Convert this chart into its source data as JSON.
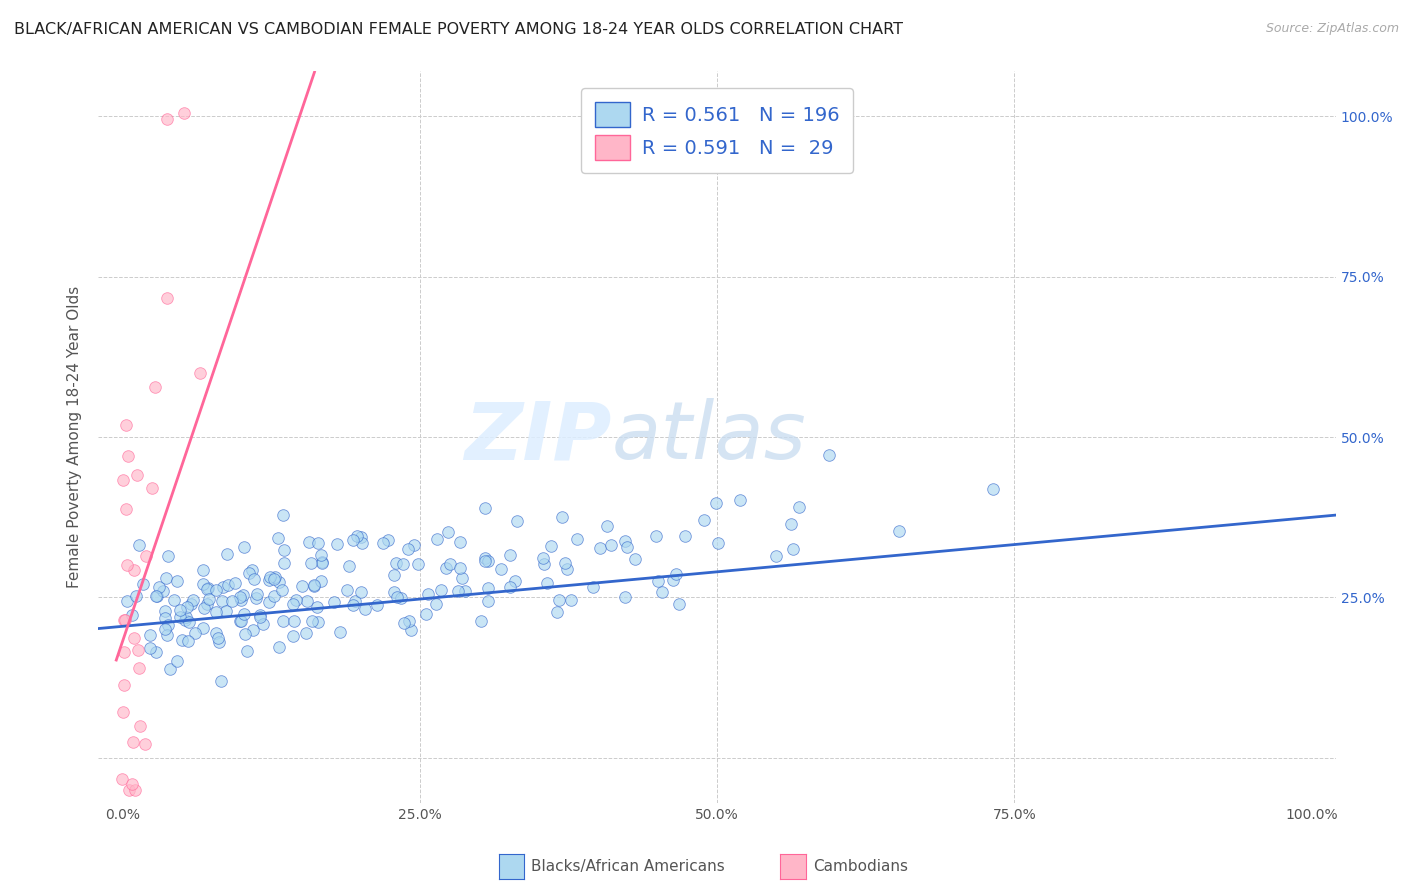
{
  "title": "BLACK/AFRICAN AMERICAN VS CAMBODIAN FEMALE POVERTY AMONG 18-24 YEAR OLDS CORRELATION CHART",
  "source": "Source: ZipAtlas.com",
  "ylabel": "Female Poverty Among 18-24 Year Olds",
  "xlabel_blue": "Blacks/African Americans",
  "xlabel_pink": "Cambodians",
  "xlim": [
    -0.02,
    1.02
  ],
  "ylim": [
    -0.07,
    1.07
  ],
  "blue_R": 0.561,
  "blue_N": 196,
  "pink_R": 0.591,
  "pink_N": 29,
  "blue_scatter_color": "#ADD8F0",
  "pink_scatter_color": "#FFB6C8",
  "blue_line_color": "#3366CC",
  "pink_line_color": "#FF6699",
  "watermark_zip": "ZIP",
  "watermark_atlas": "atlas",
  "background_color": "#FFFFFF",
  "grid_color": "#CCCCCC",
  "title_fontsize": 11.5,
  "axis_label_fontsize": 11,
  "tick_fontsize": 10,
  "legend_fontsize": 14,
  "number_color": "#3366CC",
  "label_color": "#555555"
}
